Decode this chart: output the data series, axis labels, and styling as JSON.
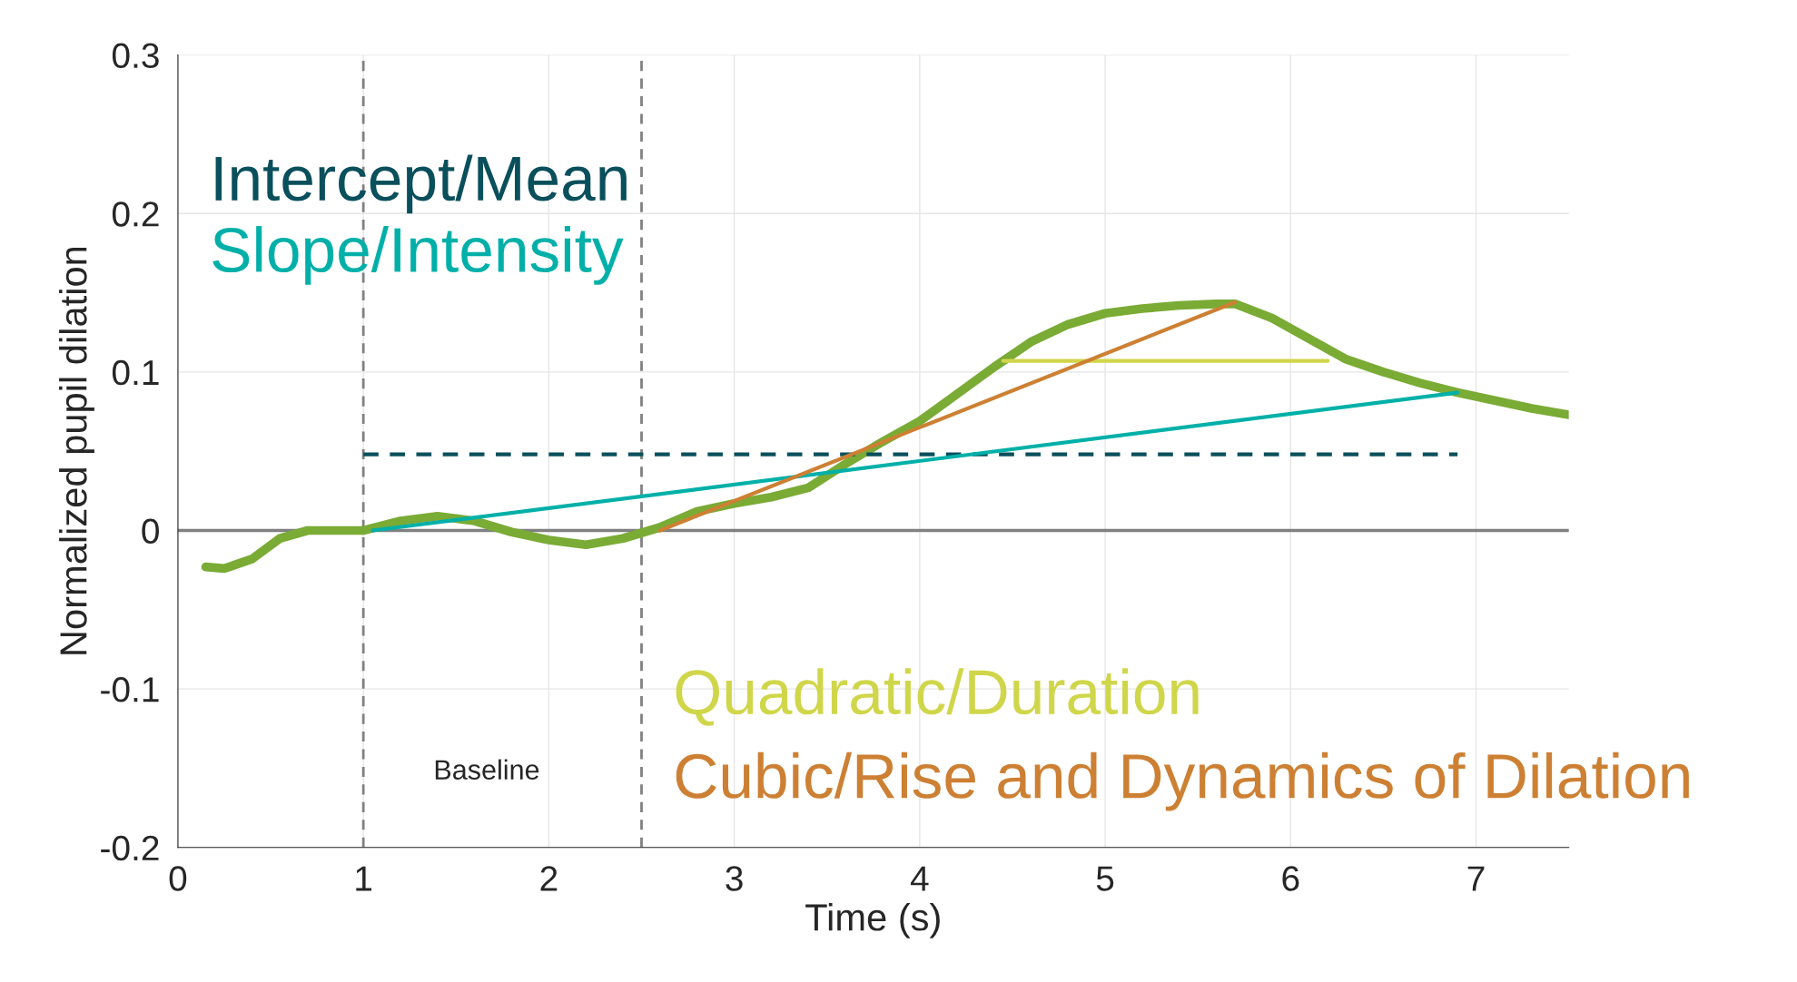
{
  "chart_data": {
    "type": "line",
    "xlabel": "Time (s)",
    "ylabel": "Normalized pupil dilation",
    "xlim": [
      0,
      7.5
    ],
    "ylim": [
      -0.2,
      0.3
    ],
    "xticks": [
      0,
      1,
      2,
      3,
      4,
      5,
      6,
      7
    ],
    "yticks": [
      -0.2,
      -0.1,
      0,
      0.1,
      0.2,
      0.3
    ],
    "grid": true,
    "legend": false,
    "series": [
      {
        "color": "#7aab35",
        "x": [
          0.15,
          0.25,
          0.4,
          0.55,
          0.7,
          0.9,
          1.0,
          1.2,
          1.4,
          1.6,
          1.8,
          2.0,
          2.2,
          2.4,
          2.6,
          2.8,
          3.0,
          3.2,
          3.4,
          3.6,
          3.8,
          4.0,
          4.2,
          4.4,
          4.6,
          4.8,
          5.0,
          5.2,
          5.4,
          5.6,
          5.7,
          5.9,
          6.1,
          6.3,
          6.5,
          6.7,
          6.9,
          7.1,
          7.3,
          7.5
        ],
        "values": [
          -0.023,
          -0.024,
          -0.018,
          -0.005,
          0,
          0,
          0,
          0.006,
          0.009,
          0.006,
          -0.001,
          -0.006,
          -0.009,
          -0.005,
          0.002,
          0.012,
          0.017,
          0.021,
          0.027,
          0.042,
          0.056,
          0.069,
          0.086,
          0.103,
          0.119,
          0.13,
          0.137,
          0.14,
          0.142,
          0.143,
          0.143,
          0.134,
          0.121,
          0.108,
          0.1,
          0.093,
          0.087,
          0.082,
          0.077,
          0.073
        ]
      },
      {
        "name": "Intercept/Mean",
        "color": "#0a4f5c",
        "line_style": "dashed",
        "x": [
          1.0,
          6.9
        ],
        "values": [
          0.048,
          0.048
        ]
      },
      {
        "name": "Slope/Intensity",
        "color": "#00b0a8",
        "x": [
          1.05,
          6.9
        ],
        "values": [
          0,
          0.087
        ]
      },
      {
        "name": "Quadratic/Duration",
        "color": "#d0d64a",
        "x": [
          4.45,
          6.2
        ],
        "values": [
          0.107,
          0.107
        ]
      },
      {
        "name": "Cubic/Rise and Dynamics of Dilation",
        "color": "#cd8033",
        "x": [
          2.6,
          5.7
        ],
        "values": [
          0,
          0.144
        ]
      }
    ],
    "ref_lines": [
      {
        "axis": "x",
        "value": 1,
        "color": "#808080",
        "line_style": "dashed"
      },
      {
        "axis": "x",
        "value": 2.5,
        "color": "#808080",
        "line_style": "dashed"
      },
      {
        "axis": "y",
        "value": 0,
        "color": "#808080",
        "line_style": "solid"
      }
    ],
    "annotations": [
      "Baseline"
    ]
  }
}
